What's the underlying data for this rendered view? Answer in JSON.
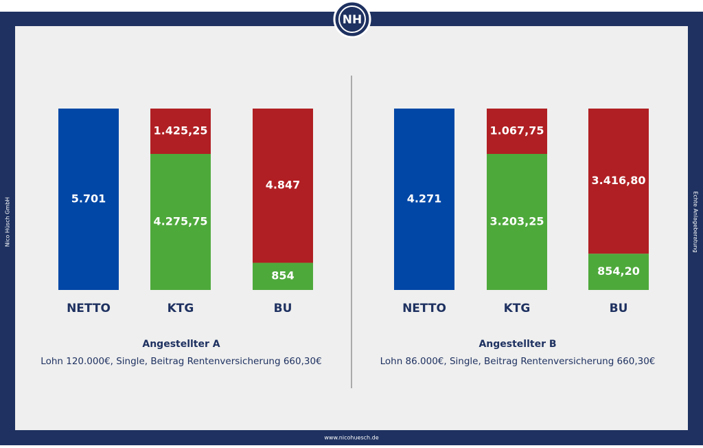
{
  "page": {
    "logo": "NH",
    "left_text": "Nico Hüsch GmbH",
    "right_text": "Echte Anlageberatung",
    "footer": "www.nicohuesch.de"
  },
  "chart_data": [
    {
      "type": "stacked_bar",
      "title": "Angestellter A",
      "subtitle": "Lohn 120.000€, Single, Beitrag Rentenversicherung 660,30€",
      "categories": [
        "NETTO",
        "KTG",
        "BU"
      ],
      "series": [
        {
          "color": "#0047a6",
          "values": [
            5701,
            null,
            null
          ],
          "value_labels": [
            "5.701",
            null,
            null
          ]
        },
        {
          "color": "#4ea93b",
          "values": [
            null,
            4275.75,
            854
          ],
          "value_labels": [
            null,
            "4.275,75",
            "854"
          ]
        },
        {
          "color": "#b01f23",
          "values": [
            null,
            1425.25,
            4847
          ],
          "value_labels": [
            null,
            "1.425,25",
            "4.847"
          ]
        }
      ]
    },
    {
      "type": "stacked_bar",
      "title": "Angestellter B",
      "subtitle": "Lohn 86.000€, Single, Beitrag Rentenversicherung 660,30€",
      "categories": [
        "NETTO",
        "KTG",
        "BU"
      ],
      "series": [
        {
          "color": "#0047a6",
          "values": [
            4271,
            null,
            null
          ],
          "value_labels": [
            "4.271",
            null,
            null
          ]
        },
        {
          "color": "#4ea93b",
          "values": [
            null,
            3203.25,
            854.2
          ],
          "value_labels": [
            null,
            "3.203,25",
            "854,20"
          ]
        },
        {
          "color": "#b01f23",
          "values": [
            null,
            1067.75,
            3416.8
          ],
          "value_labels": [
            null,
            "1.067,75",
            "3.416,80"
          ]
        }
      ]
    }
  ]
}
